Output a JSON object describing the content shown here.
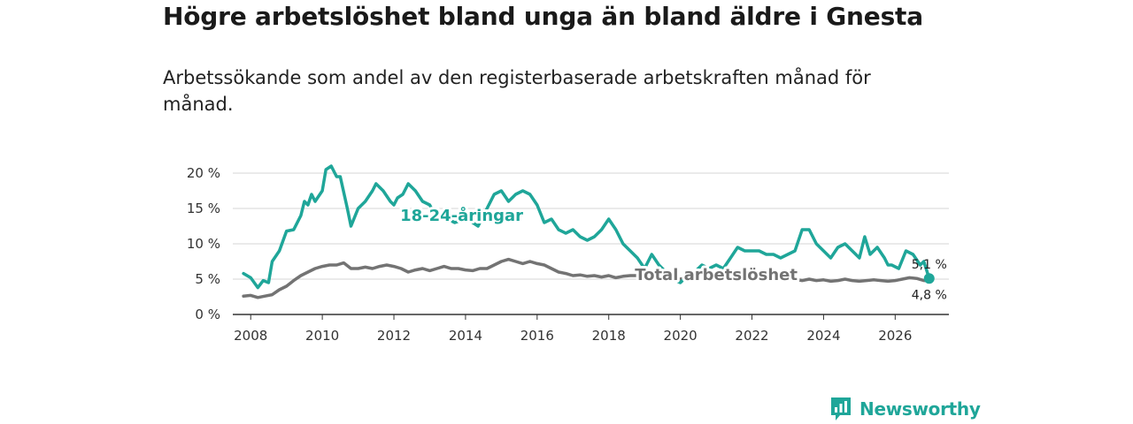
{
  "title": "Högre arbetslöshet bland unga än bland äldre i Gnesta",
  "subtitle": "Arbetssökande som andel av den registerbaserade arbetskraften månad för månad.",
  "brand": {
    "name": "Newsworthy",
    "icon": "bar-chart-logo-icon",
    "color": "#1fa699"
  },
  "chart_data": {
    "type": "line",
    "title": "Högre arbetslöshet bland unga än bland äldre i Gnesta",
    "xlabel": "",
    "ylabel": "",
    "xlim": [
      2007.5,
      2027.5
    ],
    "ylim": [
      0,
      20
    ],
    "x_ticks": [
      2008,
      2010,
      2012,
      2014,
      2016,
      2018,
      2020,
      2022,
      2024,
      2026
    ],
    "x_tick_labels": [
      "2008",
      "2010",
      "2012",
      "2014",
      "2016",
      "2018",
      "2020",
      "2022",
      "2024",
      "2026"
    ],
    "y_ticks": [
      0,
      5,
      10,
      15,
      20
    ],
    "y_tick_labels": [
      "0 %",
      "5 %",
      "10 %",
      "15 %",
      "20 %"
    ],
    "grid": true,
    "series": [
      {
        "name": "18-24-åringar",
        "color": "#1fa699",
        "end_label": "5,1 %",
        "points": [
          [
            2007.8,
            5.8
          ],
          [
            2008.0,
            5.2
          ],
          [
            2008.2,
            3.8
          ],
          [
            2008.35,
            4.8
          ],
          [
            2008.5,
            4.5
          ],
          [
            2008.6,
            7.5
          ],
          [
            2008.8,
            9.0
          ],
          [
            2009.0,
            11.8
          ],
          [
            2009.2,
            12.0
          ],
          [
            2009.4,
            14.0
          ],
          [
            2009.5,
            16.0
          ],
          [
            2009.6,
            15.5
          ],
          [
            2009.7,
            17.0
          ],
          [
            2009.8,
            16.0
          ],
          [
            2010.0,
            17.5
          ],
          [
            2010.1,
            20.5
          ],
          [
            2010.25,
            21.0
          ],
          [
            2010.4,
            19.5
          ],
          [
            2010.5,
            19.5
          ],
          [
            2010.7,
            15.0
          ],
          [
            2010.8,
            12.5
          ],
          [
            2011.0,
            15.0
          ],
          [
            2011.2,
            16.0
          ],
          [
            2011.4,
            17.5
          ],
          [
            2011.5,
            18.5
          ],
          [
            2011.7,
            17.5
          ],
          [
            2011.9,
            16.0
          ],
          [
            2012.0,
            15.5
          ],
          [
            2012.1,
            16.5
          ],
          [
            2012.25,
            17.0
          ],
          [
            2012.4,
            18.5
          ],
          [
            2012.6,
            17.5
          ],
          [
            2012.8,
            16.0
          ],
          [
            2013.0,
            15.5
          ],
          [
            2013.1,
            14.5
          ],
          [
            2013.3,
            14.0
          ],
          [
            2013.5,
            13.5
          ],
          [
            2013.7,
            13.0
          ],
          [
            2014.0,
            13.5
          ],
          [
            2014.1,
            14.5
          ],
          [
            2014.2,
            13.0
          ],
          [
            2014.35,
            12.5
          ],
          [
            2014.6,
            15.0
          ],
          [
            2014.8,
            17.0
          ],
          [
            2015.0,
            17.5
          ],
          [
            2015.2,
            16.0
          ],
          [
            2015.4,
            17.0
          ],
          [
            2015.6,
            17.5
          ],
          [
            2015.8,
            17.0
          ],
          [
            2016.0,
            15.5
          ],
          [
            2016.2,
            13.0
          ],
          [
            2016.4,
            13.5
          ],
          [
            2016.6,
            12.0
          ],
          [
            2016.8,
            11.5
          ],
          [
            2017.0,
            12.0
          ],
          [
            2017.2,
            11.0
          ],
          [
            2017.4,
            10.5
          ],
          [
            2017.6,
            11.0
          ],
          [
            2017.8,
            12.0
          ],
          [
            2018.0,
            13.5
          ],
          [
            2018.2,
            12.0
          ],
          [
            2018.4,
            10.0
          ],
          [
            2018.6,
            9.0
          ],
          [
            2018.8,
            8.0
          ],
          [
            2019.0,
            6.5
          ],
          [
            2019.2,
            8.5
          ],
          [
            2019.4,
            7.0
          ],
          [
            2019.6,
            6.0
          ],
          [
            2019.8,
            5.0
          ],
          [
            2020.0,
            4.5
          ],
          [
            2020.2,
            5.5
          ],
          [
            2020.4,
            6.0
          ],
          [
            2020.6,
            7.0
          ],
          [
            2020.8,
            6.5
          ],
          [
            2021.0,
            7.0
          ],
          [
            2021.2,
            6.5
          ],
          [
            2021.4,
            8.0
          ],
          [
            2021.6,
            9.5
          ],
          [
            2021.8,
            9.0
          ],
          [
            2022.0,
            9.0
          ],
          [
            2022.2,
            9.0
          ],
          [
            2022.4,
            8.5
          ],
          [
            2022.6,
            8.5
          ],
          [
            2022.8,
            8.0
          ],
          [
            2023.0,
            8.5
          ],
          [
            2023.2,
            9.0
          ],
          [
            2023.4,
            12.0
          ],
          [
            2023.6,
            12.0
          ],
          [
            2023.8,
            10.0
          ],
          [
            2024.0,
            9.0
          ],
          [
            2024.2,
            8.0
          ],
          [
            2024.4,
            9.5
          ],
          [
            2024.6,
            10.0
          ],
          [
            2024.8,
            9.0
          ],
          [
            2025.0,
            8.0
          ],
          [
            2025.15,
            11.0
          ],
          [
            2025.3,
            8.5
          ],
          [
            2025.5,
            9.5
          ],
          [
            2025.7,
            8.0
          ],
          [
            2025.8,
            7.0
          ],
          [
            2025.9,
            7.0
          ],
          [
            2026.1,
            6.5
          ],
          [
            2026.3,
            9.0
          ],
          [
            2026.5,
            8.5
          ],
          [
            2026.7,
            7.0
          ],
          [
            2026.8,
            7.5
          ],
          [
            2026.95,
            5.1
          ]
        ]
      },
      {
        "name": "Total arbetslöshet",
        "color": "#737373",
        "end_label": "4,8 %",
        "points": [
          [
            2007.8,
            2.6
          ],
          [
            2008.0,
            2.7
          ],
          [
            2008.2,
            2.4
          ],
          [
            2008.4,
            2.6
          ],
          [
            2008.6,
            2.8
          ],
          [
            2008.8,
            3.5
          ],
          [
            2009.0,
            4.0
          ],
          [
            2009.2,
            4.8
          ],
          [
            2009.4,
            5.5
          ],
          [
            2009.6,
            6.0
          ],
          [
            2009.8,
            6.5
          ],
          [
            2010.0,
            6.8
          ],
          [
            2010.2,
            7.0
          ],
          [
            2010.4,
            7.0
          ],
          [
            2010.6,
            7.3
          ],
          [
            2010.8,
            6.5
          ],
          [
            2011.0,
            6.5
          ],
          [
            2011.2,
            6.7
          ],
          [
            2011.4,
            6.5
          ],
          [
            2011.6,
            6.8
          ],
          [
            2011.8,
            7.0
          ],
          [
            2012.0,
            6.8
          ],
          [
            2012.2,
            6.5
          ],
          [
            2012.4,
            6.0
          ],
          [
            2012.6,
            6.3
          ],
          [
            2012.8,
            6.5
          ],
          [
            2013.0,
            6.2
          ],
          [
            2013.2,
            6.5
          ],
          [
            2013.4,
            6.8
          ],
          [
            2013.6,
            6.5
          ],
          [
            2013.8,
            6.5
          ],
          [
            2014.0,
            6.3
          ],
          [
            2014.2,
            6.2
          ],
          [
            2014.4,
            6.5
          ],
          [
            2014.6,
            6.5
          ],
          [
            2014.8,
            7.0
          ],
          [
            2015.0,
            7.5
          ],
          [
            2015.2,
            7.8
          ],
          [
            2015.4,
            7.5
          ],
          [
            2015.6,
            7.2
          ],
          [
            2015.8,
            7.5
          ],
          [
            2016.0,
            7.2
          ],
          [
            2016.2,
            7.0
          ],
          [
            2016.4,
            6.5
          ],
          [
            2016.6,
            6.0
          ],
          [
            2016.8,
            5.8
          ],
          [
            2017.0,
            5.5
          ],
          [
            2017.2,
            5.6
          ],
          [
            2017.4,
            5.4
          ],
          [
            2017.6,
            5.5
          ],
          [
            2017.8,
            5.3
          ],
          [
            2018.0,
            5.5
          ],
          [
            2018.2,
            5.2
          ],
          [
            2018.4,
            5.4
          ],
          [
            2018.6,
            5.5
          ],
          [
            2018.8,
            5.5
          ],
          [
            2019.0,
            5.3
          ],
          [
            2019.2,
            5.5
          ],
          [
            2019.4,
            5.6
          ],
          [
            2019.6,
            5.5
          ],
          [
            2019.8,
            5.2
          ],
          [
            2020.0,
            5.0
          ],
          [
            2020.2,
            5.3
          ],
          [
            2020.4,
            5.5
          ],
          [
            2020.6,
            5.8
          ],
          [
            2020.8,
            5.6
          ],
          [
            2021.0,
            5.8
          ],
          [
            2021.2,
            6.0
          ],
          [
            2021.4,
            6.2
          ],
          [
            2021.6,
            6.0
          ],
          [
            2021.8,
            6.0
          ],
          [
            2022.0,
            5.8
          ],
          [
            2022.2,
            5.5
          ],
          [
            2022.4,
            5.3
          ],
          [
            2022.6,
            5.2
          ],
          [
            2022.8,
            5.0
          ],
          [
            2023.0,
            4.9
          ],
          [
            2023.2,
            5.0
          ],
          [
            2023.4,
            4.8
          ],
          [
            2023.6,
            5.0
          ],
          [
            2023.8,
            4.8
          ],
          [
            2024.0,
            4.9
          ],
          [
            2024.2,
            4.7
          ],
          [
            2024.4,
            4.8
          ],
          [
            2024.6,
            5.0
          ],
          [
            2024.8,
            4.8
          ],
          [
            2025.0,
            4.7
          ],
          [
            2025.2,
            4.8
          ],
          [
            2025.4,
            4.9
          ],
          [
            2025.6,
            4.8
          ],
          [
            2025.8,
            4.7
          ],
          [
            2026.0,
            4.8
          ],
          [
            2026.2,
            5.0
          ],
          [
            2026.4,
            5.2
          ],
          [
            2026.6,
            5.1
          ],
          [
            2026.8,
            4.8
          ],
          [
            2026.95,
            4.8
          ]
        ]
      }
    ],
    "annotations": [
      {
        "text": "18-24-åringar",
        "series": 0,
        "at_x": 2014.4,
        "at_y": 14.5
      },
      {
        "text": "Total arbetslöshet",
        "series": 1,
        "at_x": 2021.0,
        "at_y": 5.5
      }
    ]
  }
}
